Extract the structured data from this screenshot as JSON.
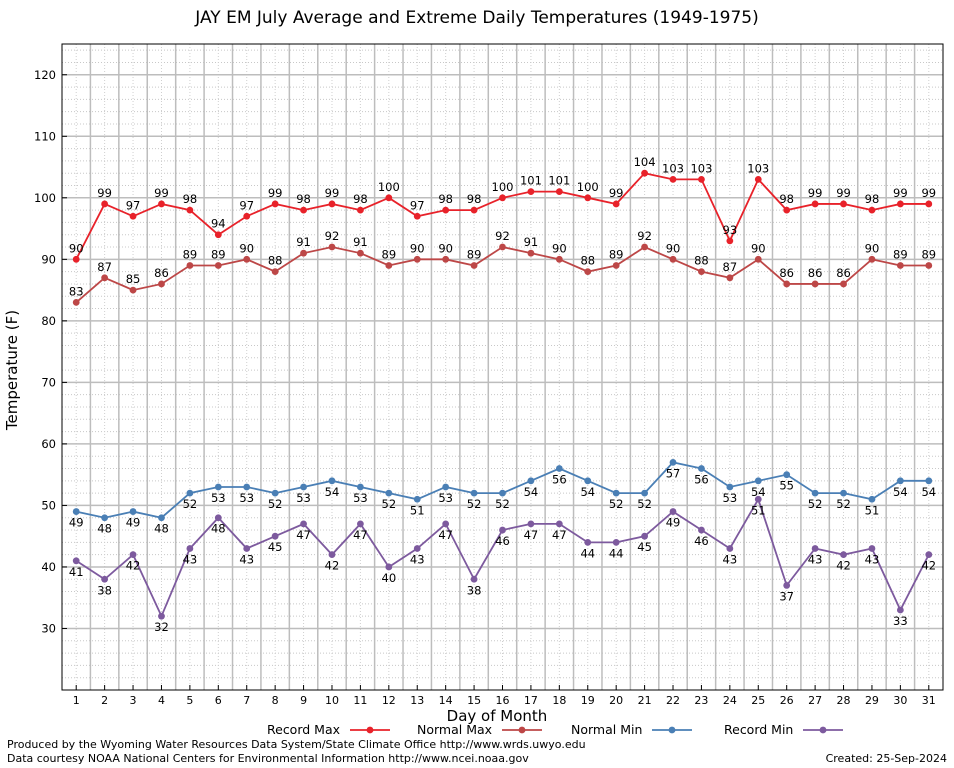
{
  "chart_data": {
    "type": "line",
    "title": "JAY EM July Average and Extreme Daily Temperatures (1949-1975)",
    "xlabel": "Day of Month",
    "ylabel": "Temperature (F)",
    "ylim": [
      20,
      125
    ],
    "yticks": [
      30,
      40,
      50,
      60,
      70,
      80,
      90,
      100,
      110,
      120
    ],
    "x": [
      1,
      2,
      3,
      4,
      5,
      6,
      7,
      8,
      9,
      10,
      11,
      12,
      13,
      14,
      15,
      16,
      17,
      18,
      19,
      20,
      21,
      22,
      23,
      24,
      25,
      26,
      27,
      28,
      29,
      30,
      31
    ],
    "grid": true,
    "legend_position": "bottom",
    "series": [
      {
        "name": "Record Max",
        "color": "#e8222a",
        "label_pos": "above",
        "values": [
          90,
          99,
          97,
          99,
          98,
          94,
          97,
          99,
          98,
          99,
          98,
          100,
          97,
          98,
          98,
          100,
          101,
          101,
          100,
          99,
          104,
          103,
          103,
          93,
          103,
          98,
          99,
          99,
          98,
          99,
          99
        ]
      },
      {
        "name": "Normal Max",
        "color": "#bd4747",
        "label_pos": "above",
        "values": [
          83,
          87,
          85,
          86,
          89,
          89,
          90,
          88,
          91,
          92,
          91,
          89,
          90,
          90,
          89,
          92,
          91,
          90,
          88,
          89,
          92,
          90,
          88,
          87,
          90,
          86,
          86,
          86,
          90,
          89,
          89
        ]
      },
      {
        "name": "Normal Min",
        "color": "#4a7fb5",
        "label_pos": "below",
        "values": [
          49,
          48,
          49,
          48,
          52,
          53,
          53,
          52,
          53,
          54,
          53,
          52,
          51,
          53,
          52,
          52,
          54,
          56,
          54,
          52,
          52,
          57,
          56,
          53,
          54,
          55,
          52,
          52,
          51,
          54,
          54
        ]
      },
      {
        "name": "Record Min",
        "color": "#7d5a9e",
        "label_pos": "below",
        "values": [
          41,
          38,
          42,
          32,
          43,
          48,
          43,
          45,
          47,
          42,
          47,
          40,
          43,
          47,
          38,
          46,
          47,
          47,
          44,
          44,
          45,
          49,
          46,
          43,
          51,
          37,
          43,
          42,
          43,
          33,
          42
        ]
      }
    ]
  },
  "footer": {
    "line1": "Produced by the Wyoming Water Resources Data System/State Climate Office http://www.wrds.uwyo.edu",
    "line2": "Data courtesy NOAA National Centers for Environmental Information http://www.ncei.noaa.gov",
    "created": "Created: 25-Sep-2024"
  }
}
